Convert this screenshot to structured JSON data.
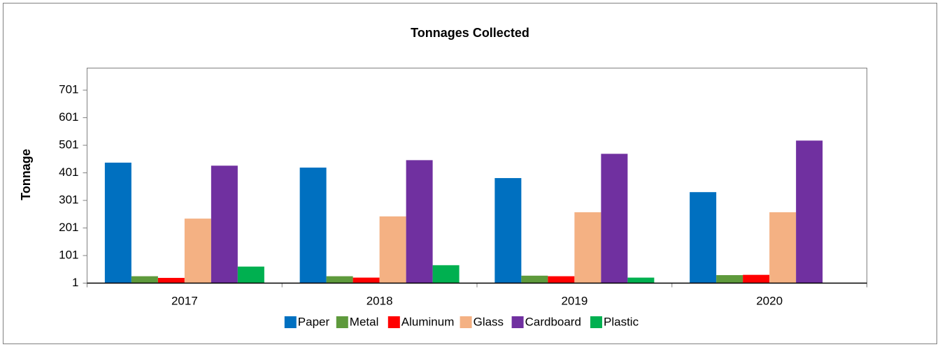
{
  "chart_data": {
    "type": "bar",
    "title": "Tonnages Collected",
    "y_label": "Tonnage",
    "categories": [
      "2017",
      "2018",
      "2019",
      "2020"
    ],
    "series": [
      {
        "name": "Paper",
        "color": "#0070c0",
        "values": [
          438,
          420,
          382,
          331
        ]
      },
      {
        "name": "Metal",
        "color": "#5e9a3c",
        "values": [
          26,
          26,
          28,
          30
        ]
      },
      {
        "name": "Aluminum",
        "color": "#ff0000",
        "values": [
          20,
          21,
          26,
          31
        ]
      },
      {
        "name": "Glass",
        "color": "#f4b183",
        "values": [
          235,
          243,
          258,
          258
        ]
      },
      {
        "name": "Cardboard",
        "color": "#7030a0",
        "values": [
          427,
          447,
          470,
          518
        ]
      },
      {
        "name": "Plastic",
        "color": "#00b050",
        "values": [
          61,
          66,
          21,
          null
        ]
      }
    ],
    "ylim": [
      1,
      781
    ],
    "yticks": [
      1,
      101,
      201,
      301,
      401,
      501,
      601,
      701
    ],
    "grid": false,
    "legend": "bottom"
  }
}
